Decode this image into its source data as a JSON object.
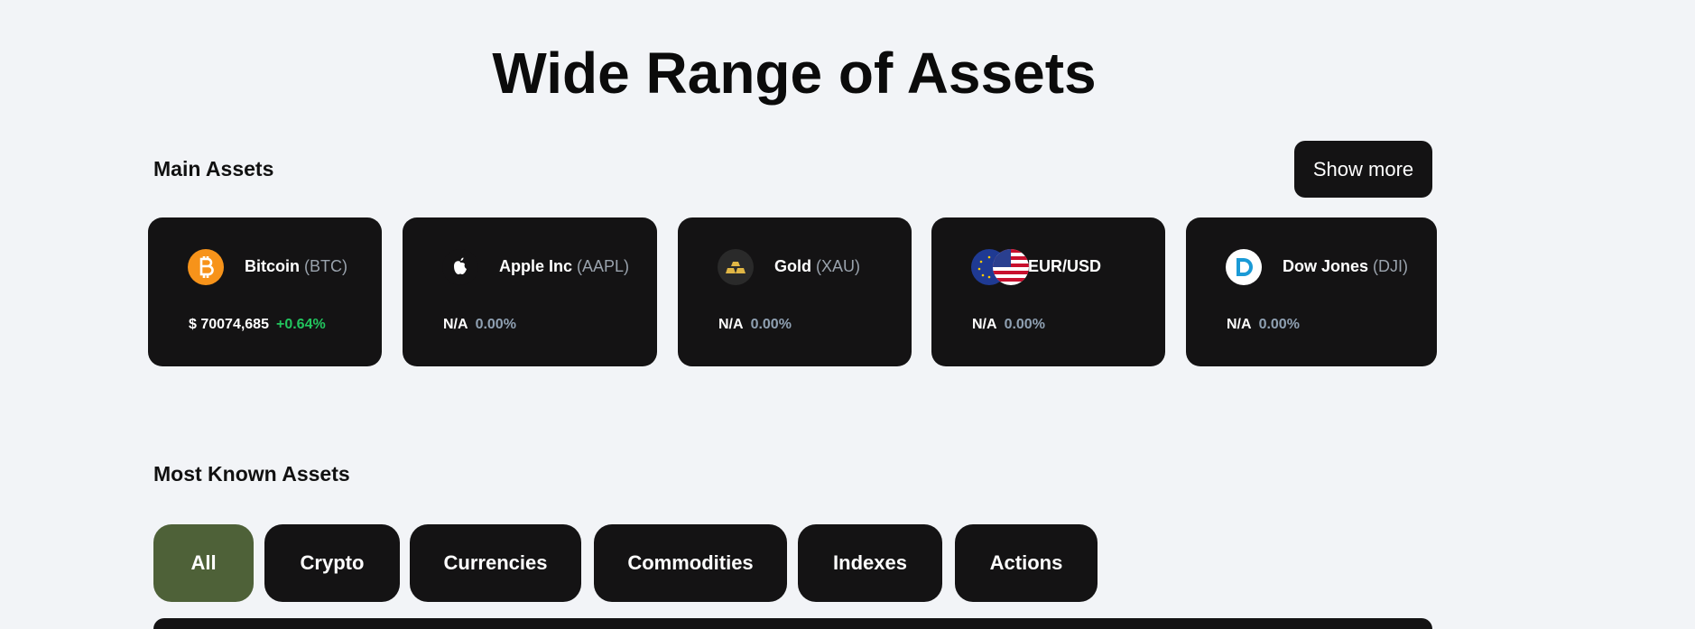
{
  "header": {
    "title": "Wide Range of Assets"
  },
  "main_assets": {
    "title": "Main Assets",
    "show_more": "Show more",
    "cards": [
      {
        "name": "Bitcoin",
        "ticker": "(BTC)",
        "price": "$ 70074,685",
        "change": "+0.64%"
      },
      {
        "name": "Apple Inc",
        "ticker": "(AAPL)",
        "price": "N/A",
        "change": "0.00%"
      },
      {
        "name": "Gold",
        "ticker": "(XAU)",
        "price": "N/A",
        "change": "0.00%"
      },
      {
        "name": "EUR/USD",
        "price": "N/A",
        "change": "0.00%"
      },
      {
        "name": "Dow Jones",
        "ticker": "(DJI)",
        "price": "N/A",
        "change": "0.00%"
      }
    ]
  },
  "most_known": {
    "title": "Most Known Assets",
    "tabs": [
      "All",
      "Crypto",
      "Currencies",
      "Commodities",
      "Indexes",
      "Actions"
    ]
  }
}
